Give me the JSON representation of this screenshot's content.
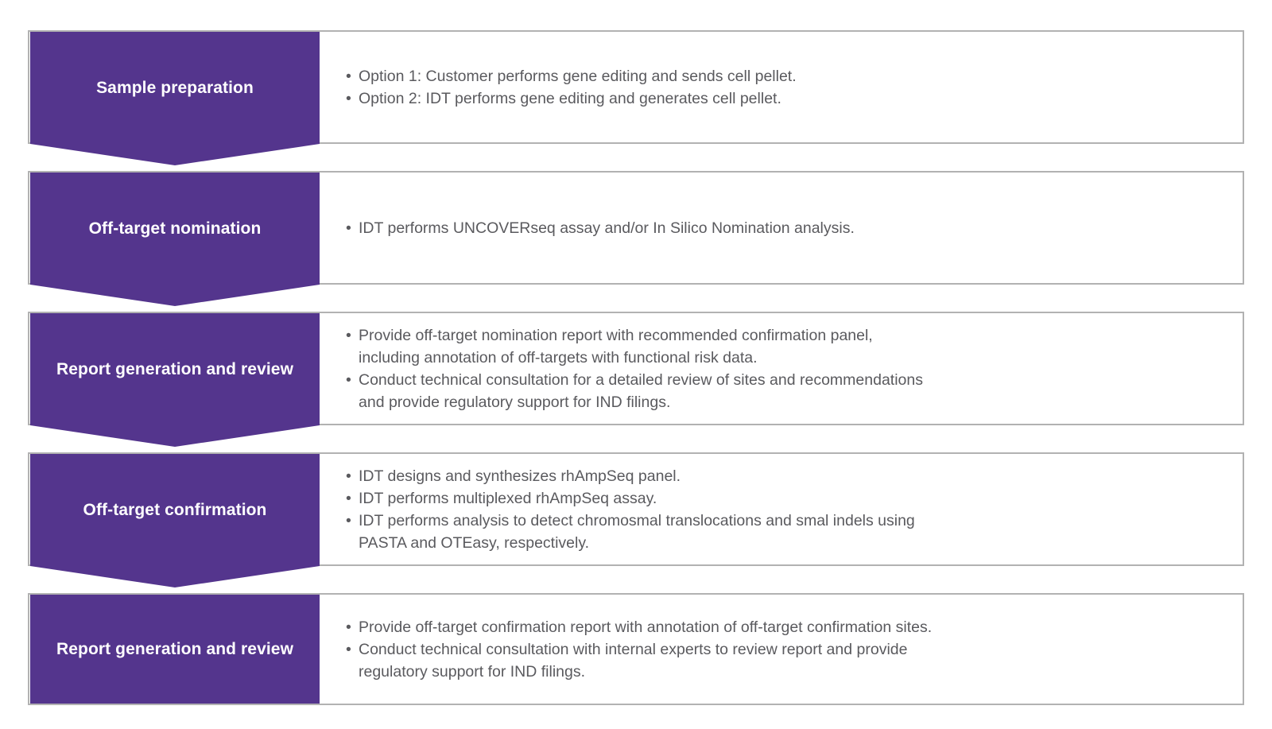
{
  "colors": {
    "banner_purple": "#54358d",
    "body_text_gray": "#5a5a5e",
    "box_border_gray": "#b2b2b2",
    "label_text": "#ffffff"
  },
  "steps": [
    {
      "label": "Sample preparation",
      "arrow": true,
      "bullets": [
        "Option 1: Customer performs gene editing and sends cell pellet.",
        "Option 2: IDT performs gene editing and generates cell pellet."
      ]
    },
    {
      "label": "Off-target nomination",
      "arrow": true,
      "bullets": [
        "IDT performs UNCOVERseq assay and/or In Silico Nomination analysis."
      ]
    },
    {
      "label": "Report generation and review",
      "arrow": true,
      "bullets": [
        "Provide off-target nomination report with recommended confirmation panel,\nincluding annotation of off-targets with functional risk data.",
        "Conduct technical consultation for a detailed review of sites and recommendations\nand provide regulatory support for IND filings."
      ]
    },
    {
      "label": "Off-target confirmation",
      "arrow": true,
      "bullets": [
        "IDT designs and synthesizes rhAmpSeq panel.",
        "IDT performs multiplexed rhAmpSeq assay.",
        "IDT performs analysis to detect chromosmal translocations and smal indels using\nPASTA and OTEasy, respectively."
      ]
    },
    {
      "label": "Report generation and review",
      "arrow": false,
      "bullets": [
        "Provide off-target confirmation report with annotation of off-target confirmation sites.",
        "Conduct technical consultation with internal experts to review report and provide\nregulatory support for IND filings."
      ]
    }
  ]
}
